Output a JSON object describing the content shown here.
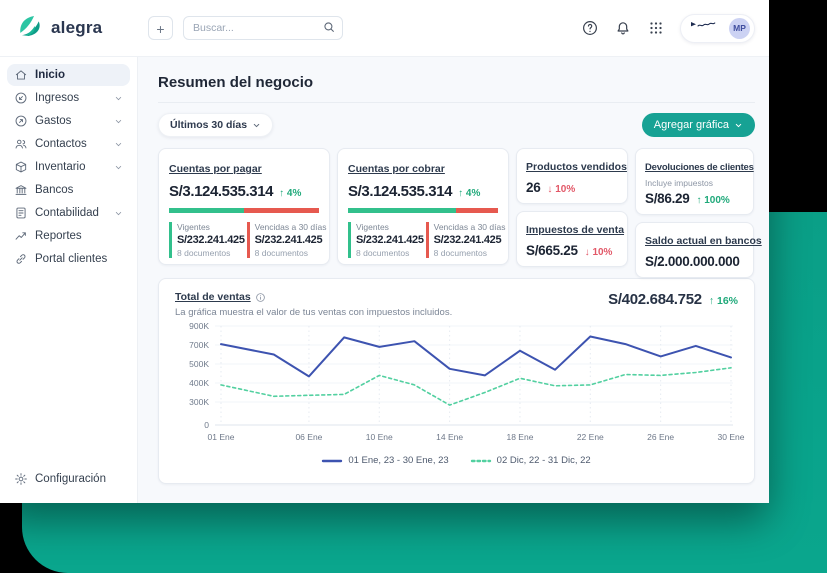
{
  "app": {
    "name": "alegra"
  },
  "topbar": {
    "new_button_label": "+",
    "search_placeholder": "Buscar...",
    "user_initials": "MP"
  },
  "sidebar": {
    "items": [
      {
        "id": "inicio",
        "label": "Inicio",
        "icon": "home",
        "chevron": false,
        "active": true
      },
      {
        "id": "ingresos",
        "label": "Ingresos",
        "icon": "income",
        "chevron": true,
        "active": false
      },
      {
        "id": "gastos",
        "label": "Gastos",
        "icon": "expense",
        "chevron": true,
        "active": false
      },
      {
        "id": "contactos",
        "label": "Contactos",
        "icon": "contacts",
        "chevron": true,
        "active": false
      },
      {
        "id": "inventario",
        "label": "Inventario",
        "icon": "inventory",
        "chevron": true,
        "active": false
      },
      {
        "id": "bancos",
        "label": "Bancos",
        "icon": "bank",
        "chevron": false,
        "active": false
      },
      {
        "id": "contabilidad",
        "label": "Contabilidad",
        "icon": "accounting",
        "chevron": true,
        "active": false
      },
      {
        "id": "reportes",
        "label": "Reportes",
        "icon": "reports",
        "chevron": false,
        "active": false
      },
      {
        "id": "portal-clientes",
        "label": "Portal clientes",
        "icon": "portal",
        "chevron": false,
        "active": false
      }
    ],
    "footer": {
      "id": "configuracion",
      "label": "Configuración",
      "icon": "gear"
    }
  },
  "main": {
    "title": "Resumen del negocio",
    "filter_label": "Últimos 30 días",
    "add_chart_label": "Agregar gráfica",
    "cards": {
      "payable": {
        "title": "Cuentas por pagar",
        "amount": "S/3.124.535.314",
        "delta_arrow": "↑",
        "delta": "4%",
        "bar": {
          "green_style": "width:50%"
        },
        "cols": [
          {
            "label": "Vigentes",
            "value": "S/232.241.425",
            "sub": "8 documentos"
          },
          {
            "label": "Vencidas a 30 días",
            "value": "S/232.241.425",
            "sub": "8 documentos"
          }
        ]
      },
      "receivable": {
        "title": "Cuentas por cobrar",
        "amount": "S/3.124.535.314",
        "delta_arrow": "↑",
        "delta": "4%",
        "bar": {
          "green_style": "width:72%"
        },
        "cols": [
          {
            "label": "Vigentes",
            "value": "S/232.241.425",
            "sub": "8 documentos"
          },
          {
            "label": "Vencidas a 30 días",
            "value": "S/232.241.425",
            "sub": "8 documentos"
          }
        ]
      },
      "products_sold": {
        "title": "Productos vendidos",
        "value": "26",
        "delta_arrow": "↓",
        "delta": "10%"
      },
      "returns": {
        "title": "Devoluciones de clientes",
        "note": "Incluye impuestos",
        "value": "S/86.29",
        "delta_arrow": "↑",
        "delta": "100%"
      },
      "taxes": {
        "title": "Impuestos de venta",
        "value": "S/665.25",
        "delta_arrow": "↓",
        "delta": "10%"
      },
      "bank_balance": {
        "title": "Saldo actual en bancos",
        "value": "S/2.000.000.000"
      }
    },
    "chart_card": {
      "title": "Total de ventas",
      "subtitle": "La gráfica muestra el valor de tus ventas con impuestos incluidos.",
      "total": "S/402.684.752",
      "delta_arrow": "↑",
      "delta": "16%"
    }
  },
  "chart_data": {
    "type": "line",
    "title": "Total de ventas",
    "x_axis": {
      "tick_days": [
        1,
        6,
        10,
        14,
        18,
        22,
        26,
        30
      ],
      "tick_labels": [
        "01 Ene",
        "06 Ene",
        "10 Ene",
        "14 Ene",
        "18 Ene",
        "22 Ene",
        "26 Ene",
        "30 Ene"
      ]
    },
    "y_axis": {
      "tick_labels": [
        "900K",
        "700K",
        "500K",
        "400K",
        "300K",
        "0"
      ],
      "tick_values_k": [
        900,
        700,
        500,
        400,
        300,
        0
      ]
    },
    "series": [
      {
        "name": "01 Ene, 23 - 30 Ene, 23",
        "style": "solid",
        "color": "#3d53b0",
        "days": [
          1,
          4,
          6,
          8,
          10,
          12,
          14,
          16,
          18,
          20,
          22,
          24,
          26,
          28,
          30
        ],
        "values_k": [
          710,
          600,
          435,
          780,
          680,
          740,
          475,
          440,
          640,
          470,
          790,
          710,
          580,
          690,
          570
        ]
      },
      {
        "name": "02 Dic, 22 - 31 Dic, 22",
        "style": "dashed",
        "color": "#52d0a0",
        "days": [
          1,
          4,
          6,
          8,
          10,
          12,
          14,
          16,
          18,
          20,
          22,
          24,
          26,
          28,
          30
        ],
        "values_k": [
          390,
          330,
          335,
          340,
          440,
          390,
          260,
          350,
          425,
          385,
          390,
          445,
          440,
          455,
          480
        ]
      }
    ],
    "legend_position": "bottom",
    "grid": "vertical-dotted"
  },
  "colors": {
    "accent_teal": "#17a294",
    "background_teal": "#09a38b",
    "delta_green": "#1fa97a",
    "delta_red": "#e25767",
    "bar_green": "#32c08c",
    "bar_red": "#e6594f",
    "line_blue": "#3d53b0",
    "line_green": "#52d0a0"
  }
}
